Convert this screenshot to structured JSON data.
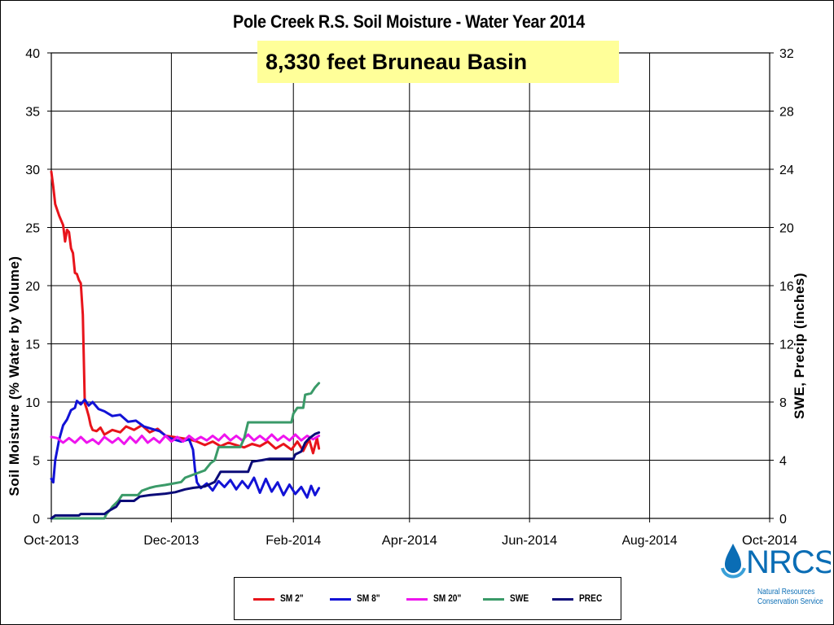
{
  "chart_data": {
    "type": "line",
    "title": "Pole Creek R.S. Soil Moisture - Water Year 2014",
    "subtitle": "8,330 feet Bruneau Basin",
    "ylabel_left": "Soil Moisture (% Water by Volume)",
    "ylabel_right": "SWE, Precip (inches)",
    "x_range": [
      "2013-10-01",
      "2014-10-01"
    ],
    "x_ticks": [
      "Oct-2013",
      "Dec-2013",
      "Feb-2014",
      "Apr-2014",
      "Jun-2014",
      "Aug-2014",
      "Oct-2014"
    ],
    "x_tick_dates": [
      "2013-10-01",
      "2013-12-01",
      "2014-02-01",
      "2014-04-01",
      "2014-06-01",
      "2014-08-01",
      "2014-10-01"
    ],
    "ylim_left": [
      0,
      40
    ],
    "yticks_left": [
      0,
      5,
      10,
      15,
      20,
      25,
      30,
      35,
      40
    ],
    "ylim_right": [
      0,
      32
    ],
    "yticks_right": [
      0,
      4,
      8,
      12,
      16,
      20,
      24,
      28,
      32
    ],
    "grid": true,
    "legend_position": "bottom",
    "series": [
      {
        "name": "SM 2\"",
        "axis": "left",
        "color": "#e8141b",
        "points": [
          [
            "2013-10-01",
            29.8
          ],
          [
            "2013-10-02",
            28.5
          ],
          [
            "2013-10-03",
            27.0
          ],
          [
            "2013-10-05",
            26.0
          ],
          [
            "2013-10-07",
            25.2
          ],
          [
            "2013-10-08",
            23.8
          ],
          [
            "2013-10-09",
            24.8
          ],
          [
            "2013-10-10",
            24.6
          ],
          [
            "2013-10-11",
            23.2
          ],
          [
            "2013-10-12",
            22.8
          ],
          [
            "2013-10-13",
            21.1
          ],
          [
            "2013-10-14",
            21.0
          ],
          [
            "2013-10-15",
            20.5
          ],
          [
            "2013-10-16",
            20.2
          ],
          [
            "2013-10-17",
            17.5
          ],
          [
            "2013-10-18",
            9.9
          ],
          [
            "2013-10-19",
            9.4
          ],
          [
            "2013-10-20",
            8.8
          ],
          [
            "2013-10-21",
            8.0
          ],
          [
            "2013-10-22",
            7.6
          ],
          [
            "2013-10-24",
            7.5
          ],
          [
            "2013-10-26",
            7.8
          ],
          [
            "2013-10-28",
            7.2
          ],
          [
            "2013-11-01",
            7.6
          ],
          [
            "2013-11-05",
            7.4
          ],
          [
            "2013-11-08",
            7.9
          ],
          [
            "2013-11-12",
            7.6
          ],
          [
            "2013-11-16",
            8.0
          ],
          [
            "2013-11-20",
            7.4
          ],
          [
            "2013-11-24",
            7.7
          ],
          [
            "2013-11-28",
            7.1
          ],
          [
            "2013-12-02",
            7.0
          ],
          [
            "2013-12-06",
            6.9
          ],
          [
            "2013-12-10",
            6.8
          ],
          [
            "2013-12-14",
            6.6
          ],
          [
            "2013-12-18",
            6.3
          ],
          [
            "2013-12-22",
            6.6
          ],
          [
            "2013-12-26",
            6.2
          ],
          [
            "2013-12-30",
            6.5
          ],
          [
            "2014-01-03",
            6.3
          ],
          [
            "2014-01-07",
            6.1
          ],
          [
            "2014-01-11",
            6.4
          ],
          [
            "2014-01-15",
            6.2
          ],
          [
            "2014-01-19",
            6.6
          ],
          [
            "2014-01-23",
            6.0
          ],
          [
            "2014-01-27",
            6.4
          ],
          [
            "2014-01-31",
            5.9
          ],
          [
            "2014-02-03",
            6.6
          ],
          [
            "2014-02-06",
            5.8
          ],
          [
            "2014-02-09",
            6.8
          ],
          [
            "2014-02-11",
            5.6
          ],
          [
            "2014-02-13",
            6.9
          ],
          [
            "2014-02-14",
            6.0
          ]
        ]
      },
      {
        "name": "SM 8\"",
        "axis": "left",
        "color": "#1212d6",
        "points": [
          [
            "2013-10-01",
            3.4
          ],
          [
            "2013-10-02",
            3.1
          ],
          [
            "2013-10-03",
            5.0
          ],
          [
            "2013-10-05",
            6.8
          ],
          [
            "2013-10-07",
            8.0
          ],
          [
            "2013-10-09",
            8.5
          ],
          [
            "2013-10-11",
            9.3
          ],
          [
            "2013-10-13",
            9.5
          ],
          [
            "2013-10-14",
            10.1
          ],
          [
            "2013-10-16",
            9.8
          ],
          [
            "2013-10-18",
            10.2
          ],
          [
            "2013-10-20",
            9.7
          ],
          [
            "2013-10-22",
            10.0
          ],
          [
            "2013-10-25",
            9.4
          ],
          [
            "2013-10-28",
            9.2
          ],
          [
            "2013-11-01",
            8.8
          ],
          [
            "2013-11-05",
            8.9
          ],
          [
            "2013-11-09",
            8.3
          ],
          [
            "2013-11-13",
            8.4
          ],
          [
            "2013-11-17",
            7.9
          ],
          [
            "2013-11-21",
            7.7
          ],
          [
            "2013-11-25",
            7.5
          ],
          [
            "2013-11-29",
            7.0
          ],
          [
            "2013-12-02",
            6.8
          ],
          [
            "2013-12-06",
            6.6
          ],
          [
            "2013-12-10",
            6.8
          ],
          [
            "2013-12-12",
            5.9
          ],
          [
            "2013-12-13",
            4.2
          ],
          [
            "2013-12-14",
            3.1
          ],
          [
            "2013-12-16",
            2.6
          ],
          [
            "2013-12-19",
            3.0
          ],
          [
            "2013-12-22",
            2.4
          ],
          [
            "2013-12-25",
            3.2
          ],
          [
            "2013-12-28",
            2.7
          ],
          [
            "2013-12-31",
            3.3
          ],
          [
            "2014-01-03",
            2.5
          ],
          [
            "2014-01-06",
            3.2
          ],
          [
            "2014-01-09",
            2.6
          ],
          [
            "2014-01-12",
            3.5
          ],
          [
            "2014-01-15",
            2.2
          ],
          [
            "2014-01-18",
            3.4
          ],
          [
            "2014-01-21",
            2.3
          ],
          [
            "2014-01-24",
            3.1
          ],
          [
            "2014-01-27",
            2.0
          ],
          [
            "2014-01-30",
            2.9
          ],
          [
            "2014-02-02",
            2.1
          ],
          [
            "2014-02-05",
            2.7
          ],
          [
            "2014-02-08",
            1.8
          ],
          [
            "2014-02-10",
            2.8
          ],
          [
            "2014-02-12",
            2.0
          ],
          [
            "2014-02-14",
            2.6
          ]
        ]
      },
      {
        "name": "SM 20\"",
        "axis": "left",
        "color": "#ee14ee",
        "points": [
          [
            "2013-10-01",
            7.0
          ],
          [
            "2013-10-04",
            6.9
          ],
          [
            "2013-10-07",
            6.5
          ],
          [
            "2013-10-10",
            6.9
          ],
          [
            "2013-10-13",
            6.5
          ],
          [
            "2013-10-16",
            7.0
          ],
          [
            "2013-10-19",
            6.5
          ],
          [
            "2013-10-22",
            6.8
          ],
          [
            "2013-10-25",
            6.4
          ],
          [
            "2013-10-28",
            7.0
          ],
          [
            "2013-11-01",
            6.5
          ],
          [
            "2013-11-04",
            6.9
          ],
          [
            "2013-11-07",
            6.4
          ],
          [
            "2013-11-10",
            7.0
          ],
          [
            "2013-11-13",
            6.5
          ],
          [
            "2013-11-16",
            7.1
          ],
          [
            "2013-11-19",
            6.5
          ],
          [
            "2013-11-22",
            6.9
          ],
          [
            "2013-11-25",
            6.5
          ],
          [
            "2013-11-28",
            7.1
          ],
          [
            "2013-12-01",
            6.6
          ],
          [
            "2013-12-04",
            7.0
          ],
          [
            "2013-12-07",
            6.6
          ],
          [
            "2013-12-10",
            7.1
          ],
          [
            "2013-12-13",
            6.7
          ],
          [
            "2013-12-16",
            7.0
          ],
          [
            "2013-12-19",
            6.7
          ],
          [
            "2013-12-22",
            7.1
          ],
          [
            "2013-12-25",
            6.7
          ],
          [
            "2013-12-28",
            7.2
          ],
          [
            "2013-12-31",
            6.7
          ],
          [
            "2014-01-03",
            7.1
          ],
          [
            "2014-01-06",
            6.7
          ],
          [
            "2014-01-09",
            7.2
          ],
          [
            "2014-01-12",
            6.7
          ],
          [
            "2014-01-15",
            7.1
          ],
          [
            "2014-01-18",
            6.7
          ],
          [
            "2014-01-21",
            7.2
          ],
          [
            "2014-01-24",
            6.7
          ],
          [
            "2014-01-27",
            7.1
          ],
          [
            "2014-01-30",
            6.7
          ],
          [
            "2014-02-02",
            7.2
          ],
          [
            "2014-02-05",
            6.7
          ],
          [
            "2014-02-08",
            7.1
          ],
          [
            "2014-02-11",
            6.8
          ],
          [
            "2014-02-14",
            7.1
          ]
        ]
      },
      {
        "name": "SWE",
        "axis": "right",
        "color": "#3a9a68",
        "points": [
          [
            "2013-10-01",
            0.0
          ],
          [
            "2013-10-28",
            0.0
          ],
          [
            "2013-10-29",
            0.3
          ],
          [
            "2013-10-31",
            0.6
          ],
          [
            "2013-11-01",
            0.8
          ],
          [
            "2013-11-04",
            1.2
          ],
          [
            "2013-11-06",
            1.6
          ],
          [
            "2013-11-14",
            1.6
          ],
          [
            "2013-11-16",
            1.9
          ],
          [
            "2013-11-20",
            2.1
          ],
          [
            "2013-11-23",
            2.2
          ],
          [
            "2013-11-28",
            2.3
          ],
          [
            "2013-12-02",
            2.4
          ],
          [
            "2013-12-06",
            2.5
          ],
          [
            "2013-12-08",
            2.8
          ],
          [
            "2013-12-12",
            3.0
          ],
          [
            "2013-12-18",
            3.3
          ],
          [
            "2013-12-21",
            3.8
          ],
          [
            "2013-12-23",
            4.0
          ],
          [
            "2013-12-25",
            4.9
          ],
          [
            "2014-01-05",
            4.9
          ],
          [
            "2014-01-07",
            5.5
          ],
          [
            "2014-01-09",
            6.6
          ],
          [
            "2014-01-20",
            6.6
          ],
          [
            "2014-01-31",
            6.6
          ],
          [
            "2014-02-01",
            7.2
          ],
          [
            "2014-02-03",
            7.6
          ],
          [
            "2014-02-06",
            7.6
          ],
          [
            "2014-02-07",
            8.5
          ],
          [
            "2014-02-10",
            8.6
          ],
          [
            "2014-02-12",
            9.0
          ],
          [
            "2014-02-14",
            9.3
          ]
        ]
      },
      {
        "name": "PREC",
        "axis": "right",
        "color": "#0b0b78",
        "points": [
          [
            "2013-10-01",
            0.0
          ],
          [
            "2013-10-03",
            0.2
          ],
          [
            "2013-10-15",
            0.2
          ],
          [
            "2013-10-16",
            0.3
          ],
          [
            "2013-10-28",
            0.3
          ],
          [
            "2013-10-30",
            0.5
          ],
          [
            "2013-11-03",
            0.8
          ],
          [
            "2013-11-05",
            1.2
          ],
          [
            "2013-11-12",
            1.2
          ],
          [
            "2013-11-15",
            1.5
          ],
          [
            "2013-11-20",
            1.6
          ],
          [
            "2013-11-28",
            1.7
          ],
          [
            "2013-12-03",
            1.8
          ],
          [
            "2013-12-08",
            2.0
          ],
          [
            "2013-12-12",
            2.1
          ],
          [
            "2013-12-18",
            2.2
          ],
          [
            "2013-12-23",
            2.5
          ],
          [
            "2013-12-26",
            3.2
          ],
          [
            "2014-01-09",
            3.2
          ],
          [
            "2014-01-11",
            3.9
          ],
          [
            "2014-01-16",
            4.0
          ],
          [
            "2014-01-20",
            4.1
          ],
          [
            "2014-02-01",
            4.1
          ],
          [
            "2014-02-02",
            4.4
          ],
          [
            "2014-02-05",
            4.6
          ],
          [
            "2014-02-07",
            5.2
          ],
          [
            "2014-02-09",
            5.5
          ],
          [
            "2014-02-12",
            5.8
          ],
          [
            "2014-02-14",
            5.9
          ]
        ]
      }
    ]
  },
  "logo": {
    "name": "NRCS",
    "line1": "Natural Resources",
    "line2": "Conservation Service",
    "color": "#0a6db5"
  }
}
